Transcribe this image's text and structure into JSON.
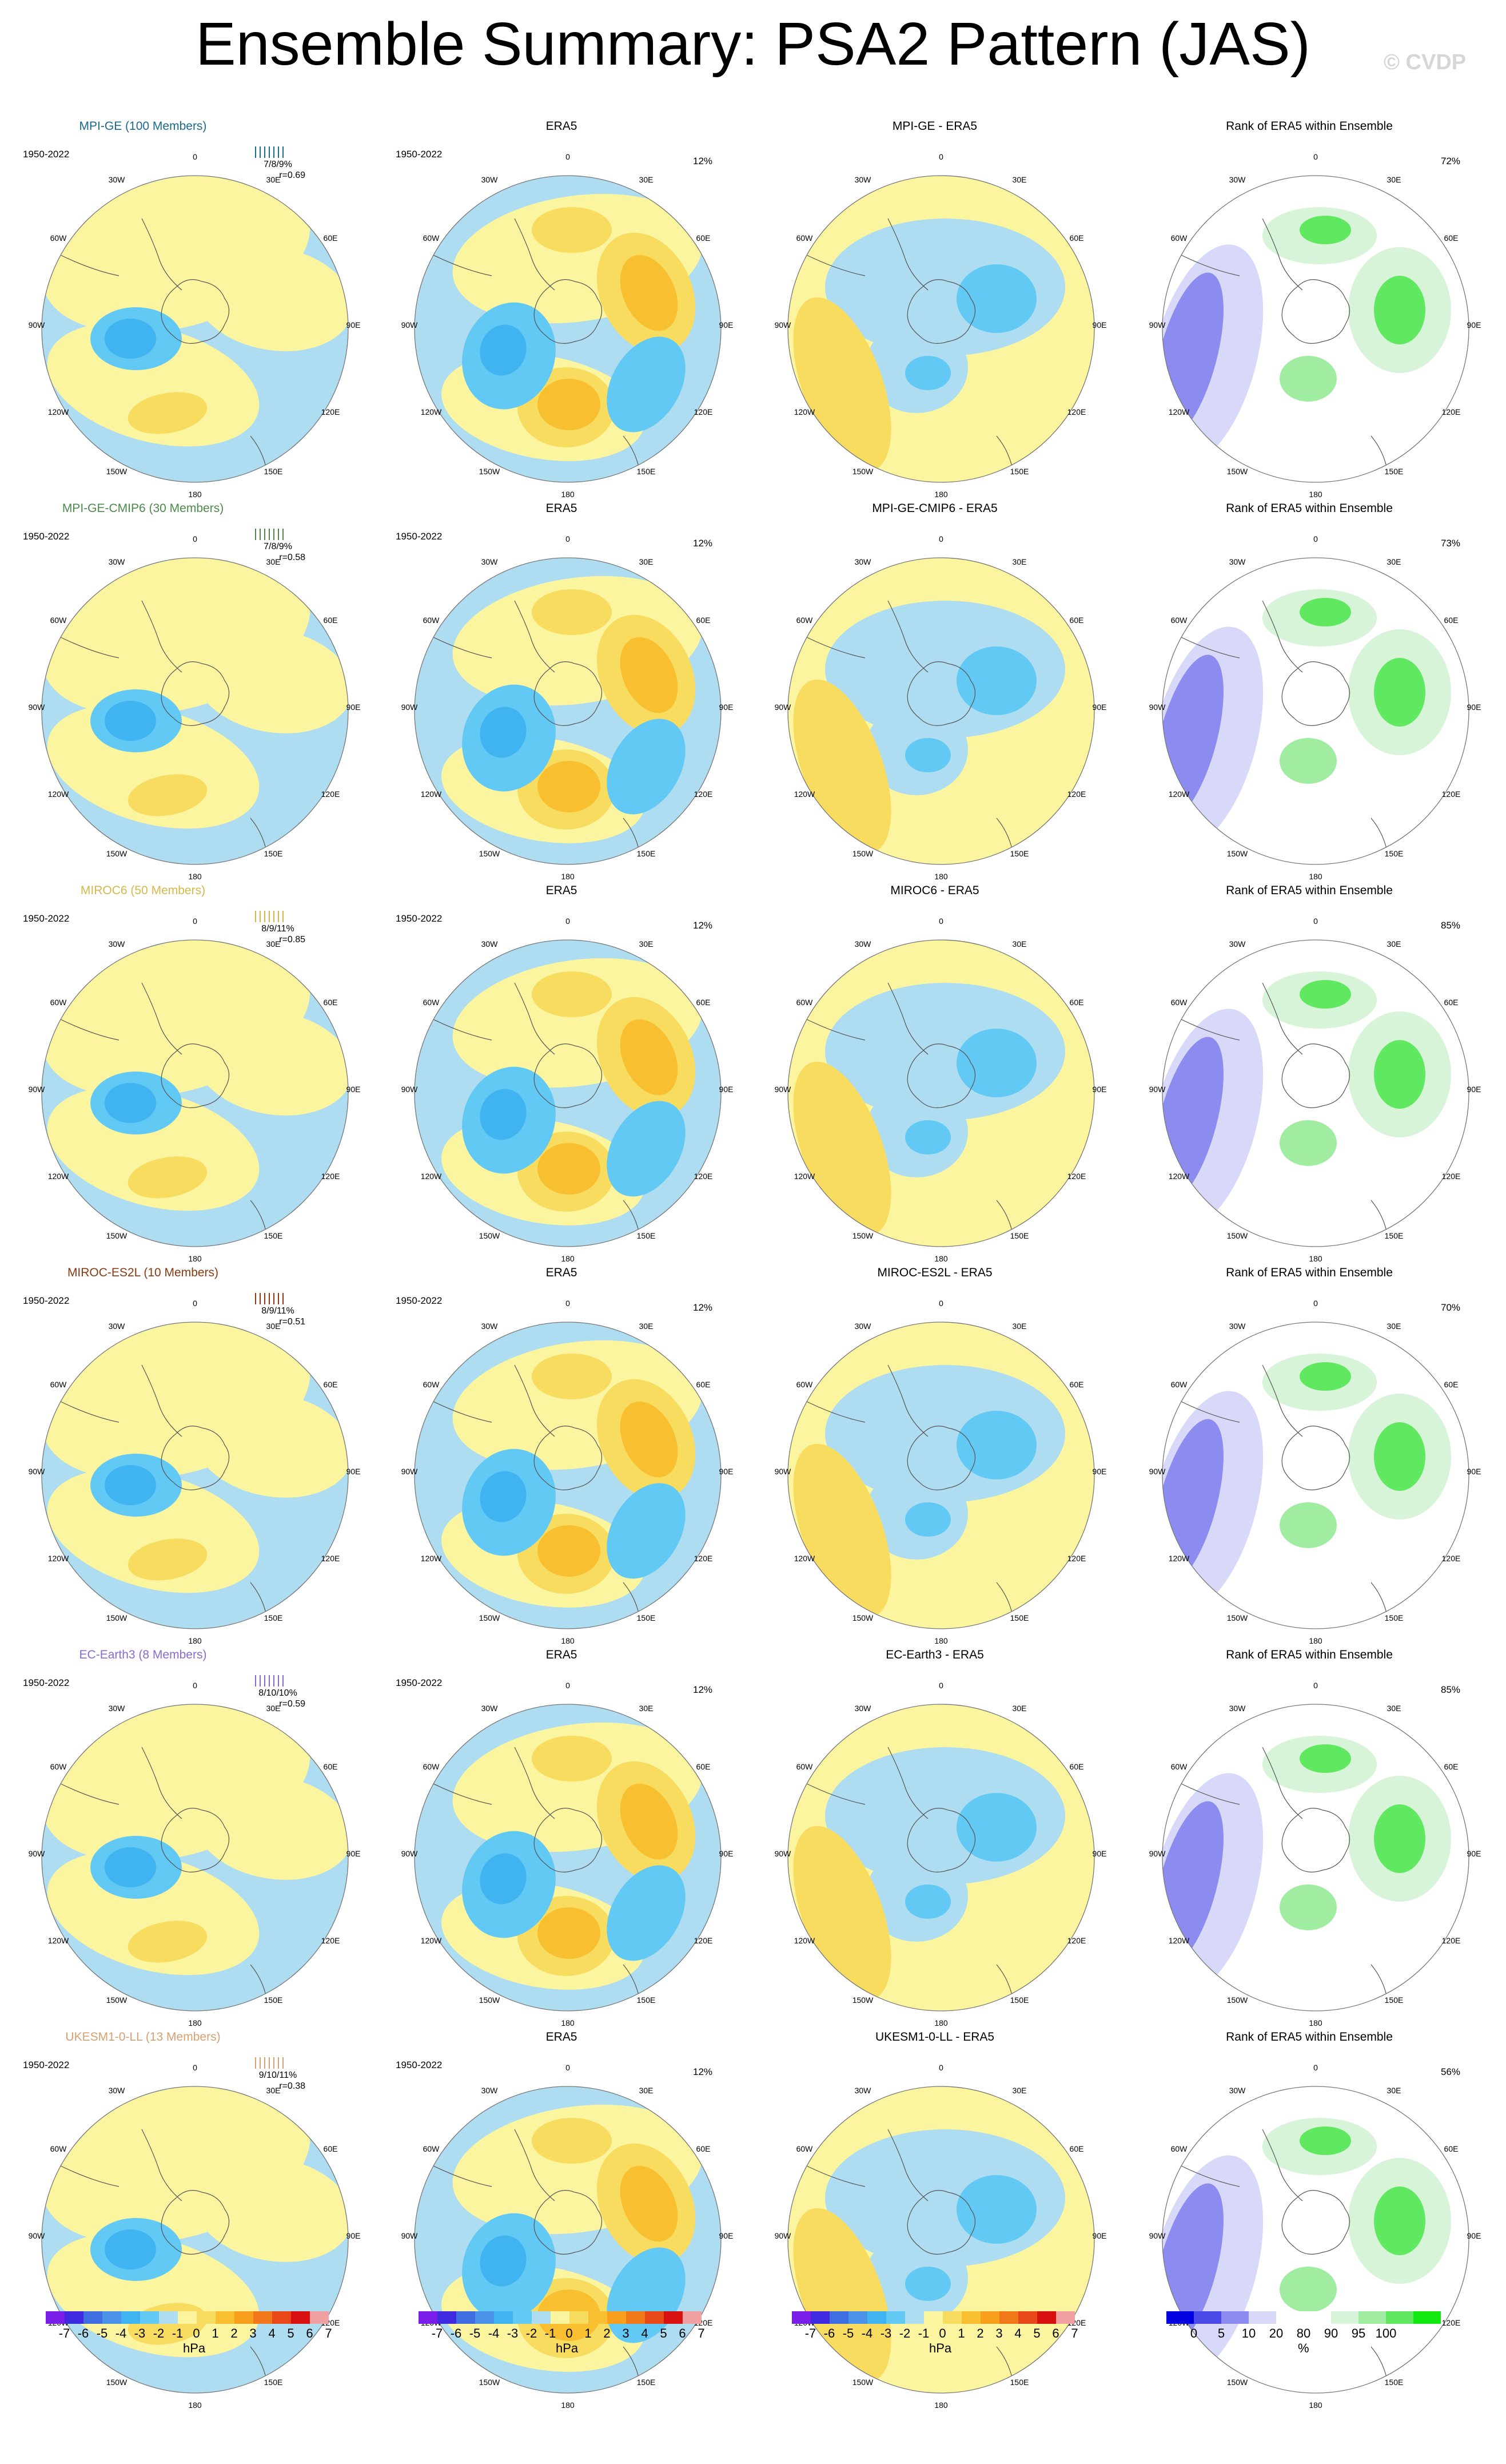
{
  "title": "Ensemble Summary: PSA2 Pattern (JAS)",
  "watermark": "© CVDP",
  "period": "1950-2022",
  "lon_labels": {
    "top": "0",
    "r30": "30E",
    "r60": "60E",
    "r90": "90E",
    "r120": "120E",
    "r150": "150E",
    "bottom": "180",
    "l150": "150W",
    "l120": "120W",
    "l90": "90W",
    "l60": "60W",
    "l30": "30W"
  },
  "rows": [
    {
      "model": "MPI-GE (100 Members)",
      "color": "#1a6a8c",
      "rank_text": "7/8/9%",
      "r_text": "r=0.69",
      "diff_title": "MPI-GE - ERA5",
      "rank_title": "Rank of ERA5 within Ensemble",
      "rank_pct": "72%"
    },
    {
      "model": "MPI-GE-CMIP6 (30 Members)",
      "color": "#4c8a4c",
      "rank_text": "7/8/9%",
      "r_text": "r=0.58",
      "diff_title": "MPI-GE-CMIP6 - ERA5",
      "rank_title": "Rank of ERA5 within Ensemble",
      "rank_pct": "73%"
    },
    {
      "model": "MIROC6 (50 Members)",
      "color": "#d6b84a",
      "rank_text": "8/9/11%",
      "r_text": "r=0.85",
      "diff_title": "MIROC6 - ERA5",
      "rank_title": "Rank of ERA5 within Ensemble",
      "rank_pct": "85%"
    },
    {
      "model": "MIROC-ES2L (10 Members)",
      "color": "#8a3a10",
      "rank_text": "8/9/11%",
      "r_text": "r=0.51",
      "diff_title": "MIROC-ES2L - ERA5",
      "rank_title": "Rank of ERA5 within Ensemble",
      "rank_pct": "70%"
    },
    {
      "model": "EC-Earth3 (8 Members)",
      "color": "#8a6ad0",
      "rank_text": "8/10/10%",
      "r_text": "r=0.59",
      "diff_title": "EC-Earth3 - ERA5",
      "rank_title": "Rank of ERA5 within Ensemble",
      "rank_pct": "85%"
    },
    {
      "model": "UKESM1-0-LL (13 Members)",
      "color": "#d8a070",
      "rank_text": "9/10/11%",
      "r_text": "r=0.38",
      "diff_title": "UKESM1-0-LL - ERA5",
      "rank_title": "Rank of ERA5 within Ensemble",
      "rank_pct": "56%"
    }
  ],
  "era5": {
    "title": "ERA5",
    "pct": "12%"
  },
  "colorbar_hpa": {
    "colors": [
      "#7a1de8",
      "#3f2ae0",
      "#3f6ee0",
      "#4a92e8",
      "#3fb4f0",
      "#62c8f4",
      "#aedcf0",
      "#fbf5a0",
      "#f8dc60",
      "#f8c030",
      "#f8a01e",
      "#f07818",
      "#e84818",
      "#d81010",
      "#f0a0a0"
    ],
    "ticks": [
      "-7",
      "-6",
      "-5",
      "-4",
      "-3",
      "-2",
      "-1",
      "0",
      "1",
      "2",
      "3",
      "4",
      "5",
      "6",
      "7"
    ],
    "unit": "hPa"
  },
  "colorbar_rank": {
    "colors": [
      "#0000e0",
      "#4a4ae8",
      "#8c8cf0",
      "#d8d8f8",
      "#ffffff",
      "#ffffff",
      "#d8f4d8",
      "#a0eca0",
      "#60e860",
      "#10e810"
    ],
    "ticks": [
      "0",
      "5",
      "10",
      "20",
      "80",
      "90",
      "95",
      "100"
    ],
    "unit": "%"
  }
}
